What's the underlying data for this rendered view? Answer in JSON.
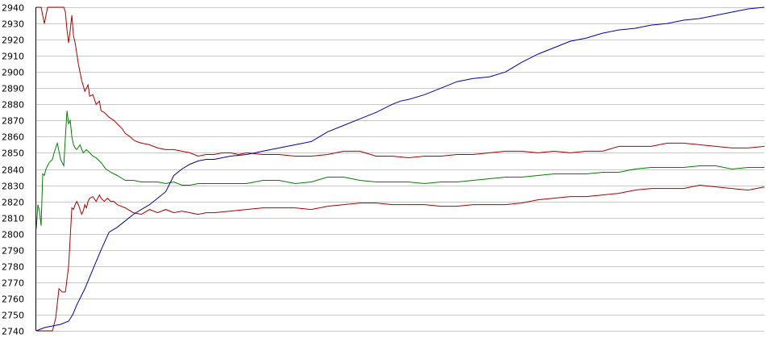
{
  "chart_data": {
    "type": "line",
    "title": "",
    "xlabel": "",
    "ylabel": "",
    "ylim": [
      2740,
      2940
    ],
    "yticks": [
      2740,
      2750,
      2760,
      2770,
      2780,
      2790,
      2800,
      2810,
      2820,
      2830,
      2840,
      2850,
      2860,
      2870,
      2880,
      2890,
      2900,
      2910,
      2920,
      2930,
      2940
    ],
    "xlim": [
      0,
      900
    ],
    "grid": true,
    "legend": "none",
    "series": [
      {
        "color": "#b00000",
        "x": [
          0,
          6,
          10,
          14,
          22,
          30,
          34,
          36,
          38,
          40,
          42,
          44,
          46,
          48,
          52,
          56,
          60,
          64,
          66,
          70,
          74,
          78,
          80,
          84,
          90,
          96,
          100,
          106,
          110,
          116,
          120,
          124,
          130,
          140,
          150,
          160,
          170,
          180,
          190,
          200,
          210,
          220,
          230,
          240,
          250,
          260,
          280,
          300,
          320,
          340,
          360,
          380,
          400,
          420,
          440,
          460,
          480,
          500,
          520,
          540,
          560,
          580,
          600,
          620,
          640,
          660,
          680,
          700,
          720,
          740,
          760,
          780,
          800,
          820,
          840,
          860,
          880,
          900
        ],
        "values": [
          2940,
          2940,
          2930,
          2940,
          2940,
          2940,
          2940,
          2937,
          2926,
          2918,
          2926,
          2935,
          2922,
          2918,
          2905,
          2895,
          2888,
          2892,
          2885,
          2886,
          2880,
          2882,
          2876,
          2875,
          2872,
          2870,
          2868,
          2865,
          2862,
          2860,
          2858,
          2857,
          2856,
          2855,
          2853,
          2852,
          2852,
          2851,
          2850,
          2848,
          2849,
          2849,
          2850,
          2850,
          2849,
          2850,
          2849,
          2849,
          2848,
          2848,
          2849,
          2851,
          2851,
          2848,
          2848,
          2847,
          2848,
          2848,
          2849,
          2849,
          2850,
          2851,
          2851,
          2850,
          2851,
          2850,
          2851,
          2851,
          2854,
          2854,
          2854,
          2856,
          2856,
          2855,
          2854,
          2853,
          2853,
          2854
        ]
      },
      {
        "color": "#008000",
        "x": [
          0,
          2,
          4,
          6,
          8,
          10,
          12,
          14,
          16,
          18,
          20,
          22,
          26,
          30,
          34,
          36,
          38,
          40,
          42,
          44,
          46,
          48,
          50,
          54,
          58,
          62,
          66,
          70,
          74,
          80,
          86,
          92,
          100,
          110,
          120,
          130,
          140,
          150,
          160,
          170,
          180,
          190,
          200,
          210,
          220,
          240,
          260,
          280,
          300,
          320,
          340,
          360,
          380,
          400,
          420,
          440,
          460,
          480,
          500,
          520,
          540,
          560,
          580,
          600,
          620,
          640,
          660,
          680,
          700,
          720,
          740,
          760,
          780,
          800,
          820,
          840,
          860,
          880,
          900
        ],
        "values": [
          2803,
          2818,
          2814,
          2805,
          2837,
          2836,
          2840,
          2842,
          2844,
          2845,
          2846,
          2850,
          2856,
          2846,
          2842,
          2860,
          2876,
          2868,
          2870,
          2860,
          2855,
          2853,
          2852,
          2855,
          2850,
          2852,
          2850,
          2848,
          2847,
          2844,
          2840,
          2838,
          2836,
          2833,
          2833,
          2832,
          2832,
          2832,
          2831,
          2832,
          2830,
          2830,
          2831,
          2831,
          2831,
          2831,
          2831,
          2833,
          2833,
          2831,
          2832,
          2835,
          2835,
          2833,
          2832,
          2832,
          2832,
          2831,
          2832,
          2832,
          2833,
          2834,
          2835,
          2835,
          2836,
          2837,
          2837,
          2837,
          2838,
          2838,
          2840,
          2841,
          2841,
          2841,
          2842,
          2842,
          2840,
          2841,
          2841
        ]
      },
      {
        "color": "#b00000",
        "x": [
          0,
          10,
          20,
          24,
          28,
          32,
          36,
          40,
          44,
          46,
          48,
          50,
          52,
          54,
          56,
          58,
          60,
          62,
          64,
          66,
          70,
          74,
          78,
          80,
          84,
          88,
          92,
          96,
          100,
          110,
          120,
          130,
          140,
          150,
          160,
          170,
          180,
          190,
          200,
          210,
          220,
          240,
          260,
          280,
          300,
          320,
          340,
          360,
          380,
          400,
          420,
          440,
          460,
          480,
          500,
          520,
          540,
          560,
          580,
          600,
          620,
          640,
          660,
          680,
          700,
          720,
          740,
          760,
          780,
          800,
          820,
          840,
          860,
          880,
          900
        ],
        "values": [
          2740,
          2740,
          2740,
          2748,
          2766,
          2764,
          2764,
          2780,
          2816,
          2815,
          2818,
          2820,
          2818,
          2815,
          2812,
          2814,
          2818,
          2816,
          2820,
          2822,
          2823,
          2820,
          2824,
          2822,
          2820,
          2822,
          2820,
          2820,
          2818,
          2816,
          2813,
          2812,
          2815,
          2813,
          2815,
          2813,
          2814,
          2813,
          2812,
          2813,
          2813,
          2814,
          2815,
          2816,
          2816,
          2816,
          2815,
          2817,
          2818,
          2819,
          2819,
          2818,
          2818,
          2818,
          2817,
          2817,
          2818,
          2818,
          2818,
          2819,
          2821,
          2822,
          2823,
          2823,
          2824,
          2825,
          2827,
          2828,
          2828,
          2828,
          2830,
          2829,
          2828,
          2827,
          2829
        ]
      },
      {
        "color": "#0000b0",
        "x": [
          0,
          10,
          20,
          30,
          40,
          45,
          50,
          60,
          70,
          80,
          90,
          100,
          110,
          120,
          130,
          140,
          150,
          160,
          170,
          180,
          190,
          200,
          210,
          220,
          240,
          260,
          280,
          300,
          320,
          340,
          350,
          360,
          380,
          400,
          420,
          440,
          450,
          460,
          480,
          500,
          520,
          540,
          560,
          580,
          600,
          620,
          640,
          660,
          680,
          700,
          720,
          740,
          760,
          780,
          800,
          820,
          840,
          860,
          880,
          900
        ],
        "values": [
          2740,
          2742,
          2743,
          2744,
          2746,
          2750,
          2756,
          2766,
          2778,
          2790,
          2801,
          2804,
          2808,
          2812,
          2815,
          2818,
          2822,
          2826,
          2836,
          2840,
          2843,
          2845,
          2846,
          2846,
          2848,
          2849,
          2851,
          2853,
          2855,
          2857,
          2860,
          2863,
          2867,
          2871,
          2875,
          2880,
          2882,
          2883,
          2886,
          2890,
          2894,
          2896,
          2897,
          2900,
          2906,
          2911,
          2915,
          2919,
          2921,
          2924,
          2926,
          2927,
          2929,
          2930,
          2932,
          2933,
          2935,
          2937,
          2939,
          2940
        ]
      }
    ]
  }
}
